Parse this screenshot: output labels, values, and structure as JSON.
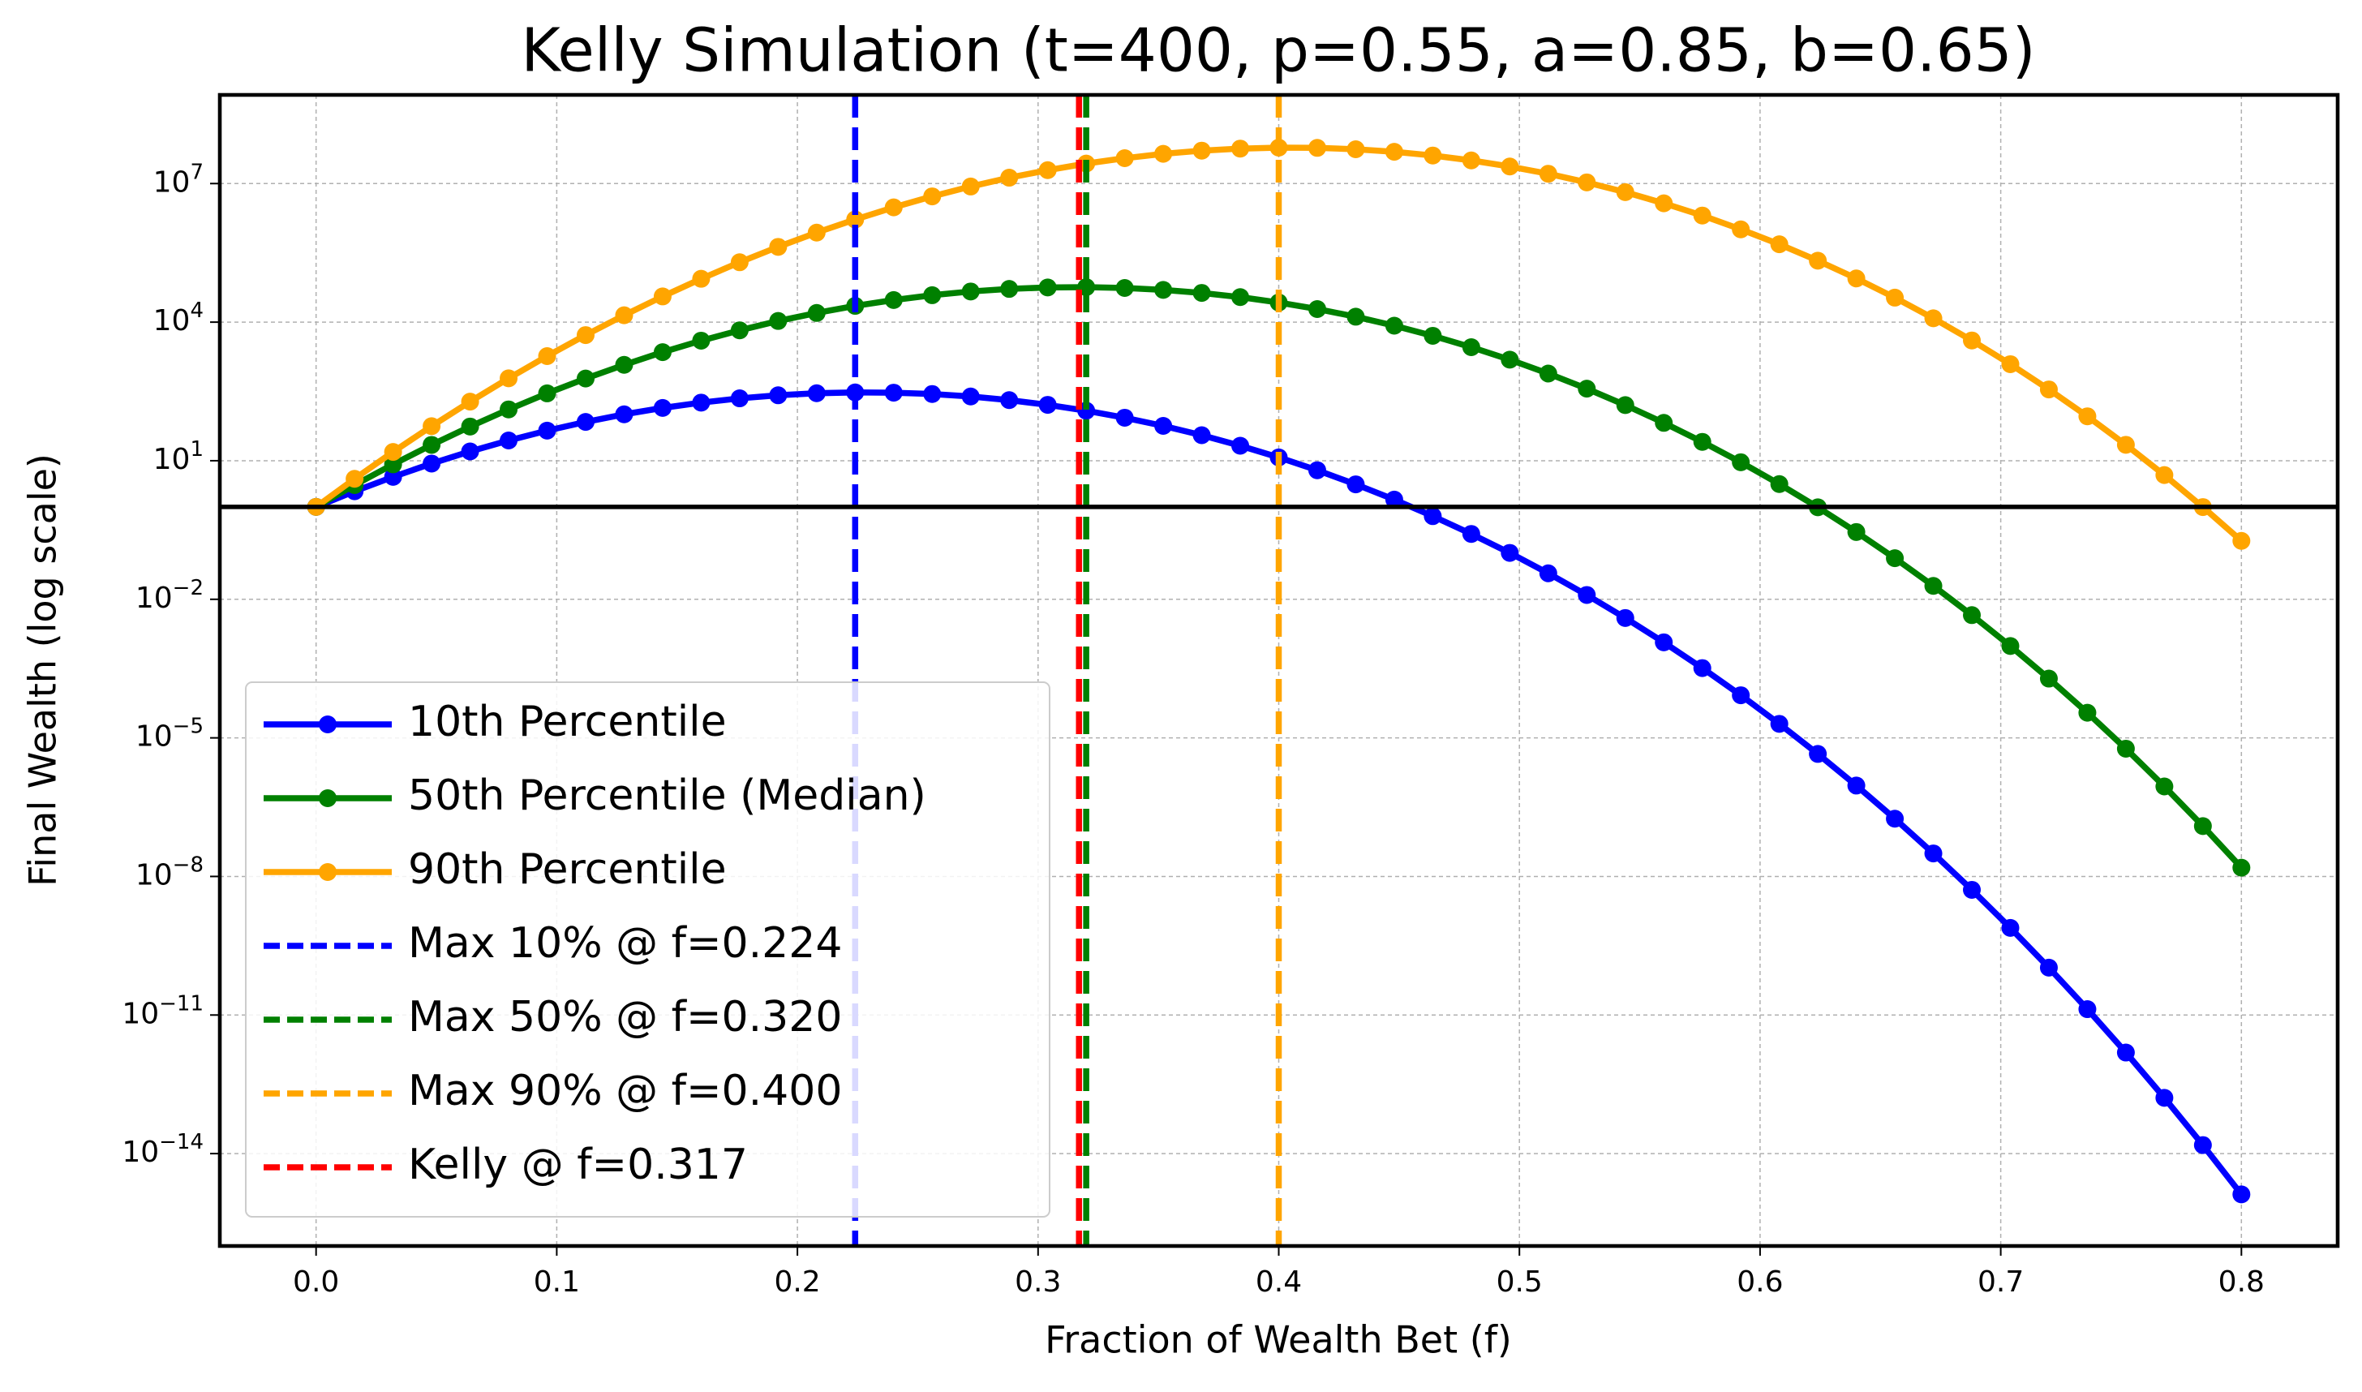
{
  "chart_data": {
    "type": "line",
    "title": "Kelly Simulation (t=400, p=0.55, a=0.85, b=0.65)",
    "x_label": "Fraction of Wealth Bet (f)",
    "y_label": "Final Wealth (log scale)",
    "log_y": true,
    "grid": true,
    "legend_loc": "lower left",
    "xlim": [
      -0.04,
      0.84
    ],
    "ylim": [
      1e-16,
      830000000.0
    ],
    "xticks": [
      {
        "value": 0,
        "label": "0.0"
      },
      0.1,
      0.2,
      0.3,
      0.4,
      0.5,
      0.6,
      0.7,
      0.8
    ],
    "yticks": [
      {
        "value": 1e-14,
        "label": "10^−14"
      },
      {
        "value": 1e-11,
        "label": "10^−11"
      },
      {
        "value": 1e-08,
        "label": "10^−8"
      },
      {
        "value": 1e-05,
        "label": "10^−5"
      },
      {
        "value": 0.01,
        "label": "10^−2"
      },
      {
        "value": 10,
        "label": "10^1"
      },
      {
        "value": 10000.0,
        "label": "10^4"
      },
      {
        "value": 10000000.0,
        "label": "10^7"
      }
    ],
    "x": [
      0,
      0.016,
      0.032,
      0.048,
      0.064,
      0.08,
      0.096,
      0.112,
      0.128,
      0.144,
      0.16,
      0.176,
      0.192,
      0.208,
      0.224,
      0.24,
      0.256,
      0.272,
      0.288,
      0.304,
      0.32,
      0.336,
      0.352,
      0.368,
      0.384,
      0.4,
      0.416,
      0.432,
      0.448,
      0.464,
      0.48,
      0.496,
      0.512,
      0.528,
      0.544,
      0.56,
      0.576,
      0.592,
      0.608,
      0.624,
      0.64,
      0.656,
      0.672,
      0.688,
      0.704,
      0.72,
      0.736,
      0.752,
      0.768,
      0.784,
      0.8
    ],
    "series": [
      {
        "name": "10th Percentile",
        "color": "#0000ff",
        "values": [
          1,
          2.18,
          4.47,
          8.68,
          15.9,
          27.4,
          44.8,
          69.1,
          101.0,
          139.0,
          181.0,
          224.0,
          261.0,
          289.0,
          301.0,
          297.0,
          278.0,
          246.0,
          205.0,
          162.0,
          121.0,
          85.2,
          56.8,
          35.7,
          21.1,
          11.8,
          6.22,
          3.08,
          1.44,
          0.631,
          0.26,
          0.101,
          0.0365,
          0.0124,
          0.00394,
          0.00117,
          0.000324,
          8.37e-05,
          2.01e-05,
          4.49e-06,
          9.28e-07,
          1.78e-07,
          3.15e-08,
          5.13e-09,
          7.7e-10,
          1.06e-10,
          1.34e-11,
          1.54e-12,
          1.61e-13,
          1.53e-14,
          1.31e-15
        ]
      },
      {
        "name": "50th Percentile (Median)",
        "color": "#008000",
        "values": [
          1,
          2.97,
          8.34,
          22.0,
          54.9,
          129.0,
          287.0,
          602.0,
          1190.0,
          2240.0,
          3970.0,
          6650.0,
          10600.0,
          15800.0,
          22500.0,
          30100.0,
          38300.0,
          46100.0,
          52400.0,
          56300.0,
          57200.0,
          54900.0,
          49900.0,
          42900.0,
          34800.0,
          26600.0,
          19200.0,
          13100.0,
          8380.0,
          5060.0,
          2870.0,
          1540.0,
          770.0,
          363.0,
          160.0,
          66.0,
          25.6,
          9.26,
          3.12,
          0.98,
          0.286,
          0.0776,
          0.0195,
          0.00454,
          0.000974,
          0.000192,
          3.5e-05,
          5.83e-06,
          8.87e-07,
          1.23e-07,
          1.55e-08
        ]
      },
      {
        "name": "90th Percentile",
        "color": "#ffa500",
        "values": [
          1,
          4.06,
          15.5,
          55.9,
          190.0,
          608.0,
          1840.0,
          5240.0,
          14100.0,
          36000.0,
          86800.0,
          198000.0,
          426000.0,
          868000.0,
          1670000.0,
          3050000.0,
          5280000.0,
          8630000.0,
          13400000.0,
          19500000.0,
          27100000.0,
          35400000.0,
          44000000.0,
          51600000.0,
          57100000.0,
          59900000.0,
          59200000.0,
          55300000.0,
          48700000.0,
          40500000.0,
          31700000.0,
          23400000.0,
          16300000.0,
          10600000.0,
          6520000.0,
          3740000.0,
          2030000.0,
          1020000.0,
          485000.0,
          214000.0,
          88300.0,
          33900.0,
          12100.0,
          4010.0,
          1230.0,
          349.0,
          91.5,
          22.1,
          4.89,
          0.992,
          0.184
        ]
      }
    ],
    "vlines": [
      {
        "name": "Max 10% @ f=0.224",
        "x": 0.224,
        "color": "#0000ff"
      },
      {
        "name": "Max 50% @ f=0.320",
        "x": 0.32,
        "color": "#008000"
      },
      {
        "name": "Max 90% @ f=0.400",
        "x": 0.4,
        "color": "#ffa500"
      },
      {
        "name": "Kelly @ f=0.317",
        "x": 0.317,
        "color": "#ff0000"
      }
    ],
    "hline": {
      "y": 1,
      "color": "#000000"
    }
  }
}
